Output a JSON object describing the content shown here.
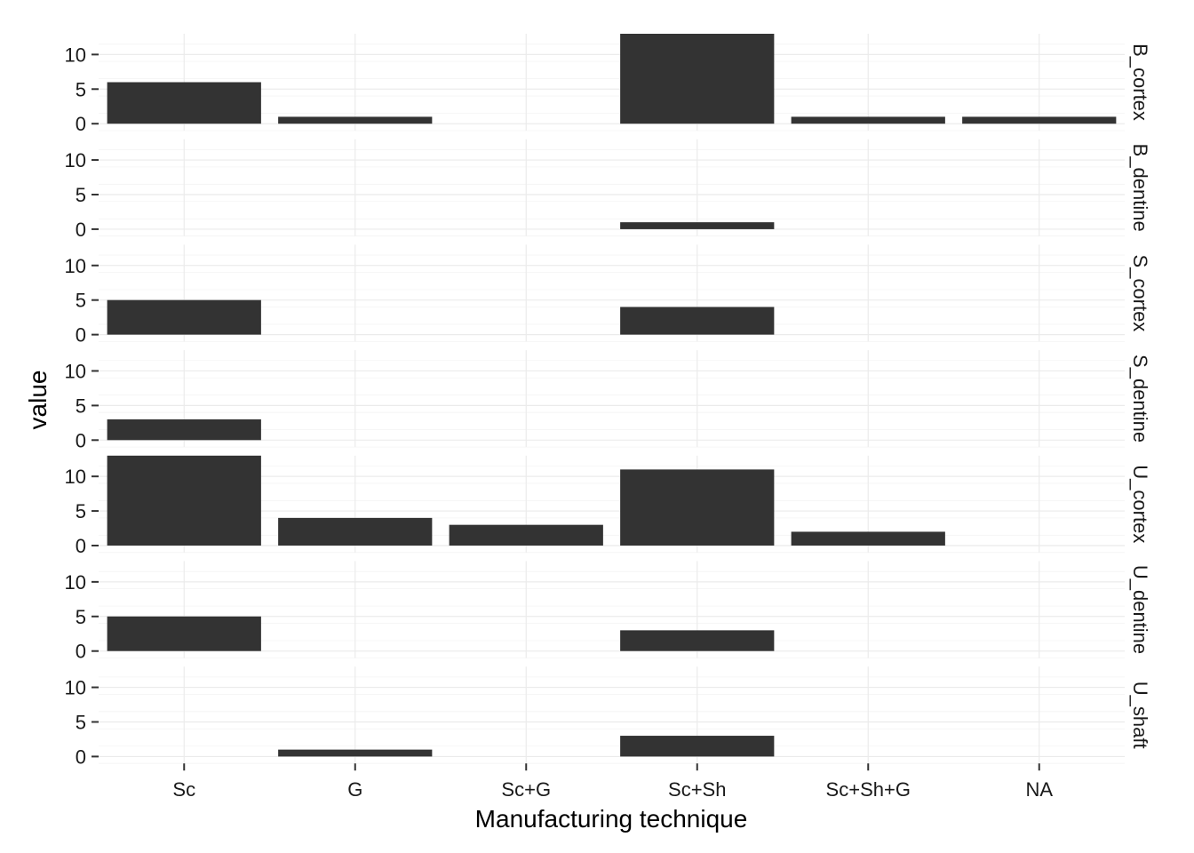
{
  "chart_data": {
    "type": "bar",
    "xlabel": "Manufacturing technique",
    "ylabel": "value",
    "categories": [
      "Sc",
      "G",
      "Sc+G",
      "Sc+Sh",
      "Sc+Sh+G",
      "NA"
    ],
    "y_ticks": [
      0,
      5,
      10
    ],
    "ylim": [
      -1,
      13
    ],
    "grid": true,
    "facets": [
      {
        "label": "B_cortex",
        "values": [
          6,
          1,
          0,
          13,
          1,
          1
        ]
      },
      {
        "label": "B_dentine",
        "values": [
          0,
          0,
          0,
          1,
          0,
          0
        ]
      },
      {
        "label": "S_cortex",
        "values": [
          5,
          0,
          0,
          4,
          0,
          0
        ]
      },
      {
        "label": "S_dentine",
        "values": [
          3,
          0,
          0,
          0,
          0,
          0
        ]
      },
      {
        "label": "U_cortex",
        "values": [
          13,
          4,
          3,
          11,
          2,
          0
        ]
      },
      {
        "label": "U_dentine",
        "values": [
          5,
          0,
          0,
          3,
          0,
          0
        ]
      },
      {
        "label": "U_shaft",
        "values": [
          0,
          1,
          0,
          3,
          0,
          0
        ]
      }
    ],
    "bar_color": "#333333"
  }
}
